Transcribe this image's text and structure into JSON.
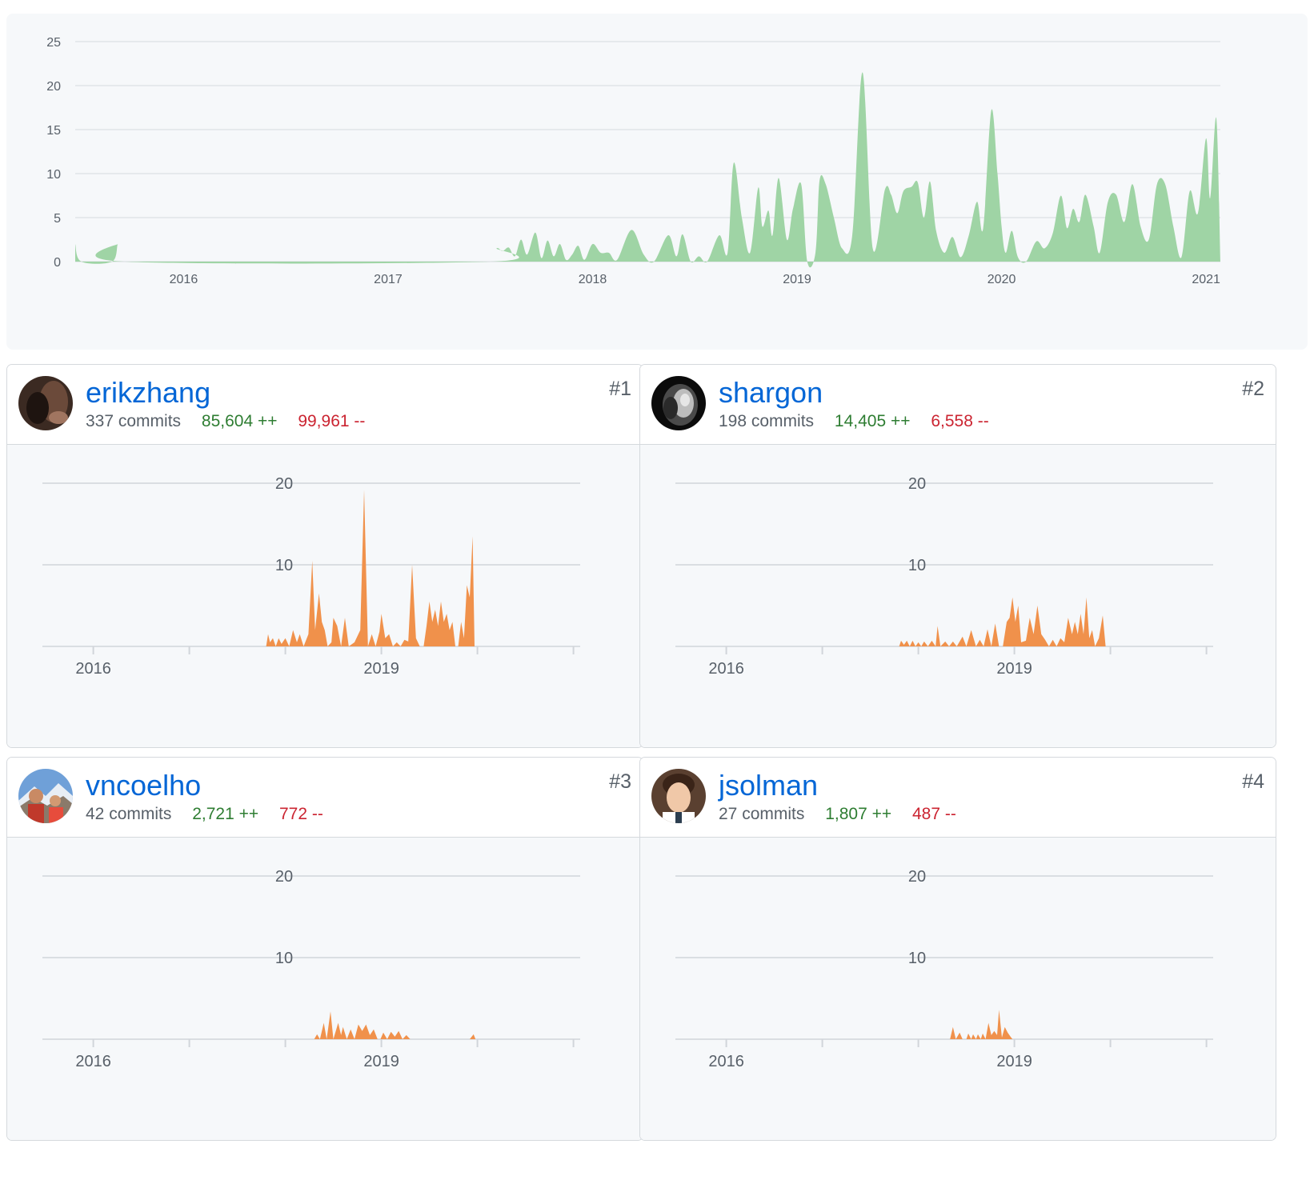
{
  "main_chart": {
    "type": "area",
    "color": "#9fd4a5",
    "y_ticks": [
      "0",
      "5",
      "10",
      "15",
      "20",
      "25"
    ],
    "ylim": [
      0,
      25
    ],
    "x_ticks": [
      "2016",
      "2017",
      "2018",
      "2019",
      "2020",
      "2021"
    ],
    "x_range": [
      2015.47,
      2021.07
    ],
    "series": [
      [
        2015.47,
        2
      ],
      [
        2015.5,
        0
      ],
      [
        2015.65,
        0
      ],
      [
        2015.68,
        2
      ],
      [
        2015.71,
        0
      ],
      [
        2017.5,
        0
      ],
      [
        2017.53,
        1.5
      ],
      [
        2017.56,
        1.2
      ],
      [
        2017.59,
        1.6
      ],
      [
        2017.62,
        0.6
      ],
      [
        2017.65,
        2.5
      ],
      [
        2017.68,
        0.8
      ],
      [
        2017.72,
        3.3
      ],
      [
        2017.75,
        0.4
      ],
      [
        2017.78,
        2.4
      ],
      [
        2017.81,
        0.6
      ],
      [
        2017.84,
        2
      ],
      [
        2017.87,
        0.2
      ],
      [
        2017.9,
        0.8
      ],
      [
        2017.93,
        1.8
      ],
      [
        2017.96,
        0.2
      ],
      [
        2018,
        2
      ],
      [
        2018.04,
        1
      ],
      [
        2018.08,
        1
      ],
      [
        2018.12,
        0.2
      ],
      [
        2018.19,
        3.6
      ],
      [
        2018.25,
        0.8
      ],
      [
        2018.3,
        0
      ],
      [
        2018.37,
        3
      ],
      [
        2018.41,
        0.6
      ],
      [
        2018.44,
        3.1
      ],
      [
        2018.48,
        0
      ],
      [
        2018.52,
        0.6
      ],
      [
        2018.56,
        0
      ],
      [
        2018.62,
        3
      ],
      [
        2018.66,
        1
      ],
      [
        2018.69,
        11.2
      ],
      [
        2018.73,
        5
      ],
      [
        2018.77,
        1
      ],
      [
        2018.81,
        8.4
      ],
      [
        2018.83,
        4
      ],
      [
        2018.86,
        5.8
      ],
      [
        2018.88,
        3
      ],
      [
        2018.91,
        9.5
      ],
      [
        2018.95,
        2.5
      ],
      [
        2018.98,
        6
      ],
      [
        2019.02,
        8.8
      ],
      [
        2019.05,
        0
      ],
      [
        2019.09,
        1
      ],
      [
        2019.11,
        9.2
      ],
      [
        2019.14,
        8.8
      ],
      [
        2019.18,
        5
      ],
      [
        2019.22,
        1.5
      ],
      [
        2019.27,
        3
      ],
      [
        2019.32,
        21.5
      ],
      [
        2019.37,
        1.5
      ],
      [
        2019.43,
        8.2
      ],
      [
        2019.46,
        7.6
      ],
      [
        2019.49,
        5.5
      ],
      [
        2019.52,
        8
      ],
      [
        2019.56,
        8.5
      ],
      [
        2019.59,
        9
      ],
      [
        2019.62,
        5
      ],
      [
        2019.65,
        9.1
      ],
      [
        2019.68,
        3.5
      ],
      [
        2019.72,
        1
      ],
      [
        2019.76,
        2.8
      ],
      [
        2019.8,
        0.5
      ],
      [
        2019.84,
        3
      ],
      [
        2019.88,
        6.8
      ],
      [
        2019.91,
        3.8
      ],
      [
        2019.95,
        17.2
      ],
      [
        2019.98,
        10
      ],
      [
        2020,
        4
      ],
      [
        2020.02,
        1
      ],
      [
        2020.05,
        3.5
      ],
      [
        2020.08,
        0.5
      ],
      [
        2020.12,
        0
      ],
      [
        2020.17,
        2.3
      ],
      [
        2020.21,
        1.5
      ],
      [
        2020.25,
        3.2
      ],
      [
        2020.29,
        7.5
      ],
      [
        2020.32,
        3.8
      ],
      [
        2020.35,
        6
      ],
      [
        2020.38,
        4.5
      ],
      [
        2020.41,
        7.6
      ],
      [
        2020.45,
        4
      ],
      [
        2020.48,
        1
      ],
      [
        2020.52,
        6.8
      ],
      [
        2020.56,
        7.6
      ],
      [
        2020.6,
        4.5
      ],
      [
        2020.64,
        8.8
      ],
      [
        2020.68,
        4
      ],
      [
        2020.72,
        2.5
      ],
      [
        2020.76,
        8.8
      ],
      [
        2020.8,
        8.8
      ],
      [
        2020.84,
        4
      ],
      [
        2020.88,
        0.5
      ],
      [
        2020.92,
        8
      ],
      [
        2020.96,
        5.5
      ],
      [
        2021,
        14
      ],
      [
        2021.02,
        7.2
      ],
      [
        2021.05,
        16.3
      ],
      [
        2021.07,
        0
      ]
    ]
  },
  "contributors": [
    {
      "rank": "#1",
      "username": "erikzhang",
      "commits": "337 commits",
      "additions": "85,604 ++",
      "deletions": "99,961 --",
      "avatar": "dark-portrait",
      "chart_data": {
        "type": "area",
        "color": "#f0914b",
        "y_ticks": [
          "10",
          "20"
        ],
        "ylim": [
          0,
          20
        ],
        "x_ticks": [
          "2016",
          "2019"
        ],
        "x_range": [
          2015.47,
          2021.07
        ],
        "series": [
          [
            2017.8,
            0
          ],
          [
            2017.82,
            1.5
          ],
          [
            2017.84,
            0.5
          ],
          [
            2017.87,
            1
          ],
          [
            2017.9,
            0
          ],
          [
            2017.93,
            1
          ],
          [
            2017.96,
            0.3
          ],
          [
            2018,
            1
          ],
          [
            2018.04,
            0
          ],
          [
            2018.08,
            2
          ],
          [
            2018.12,
            0.5
          ],
          [
            2018.15,
            1.5
          ],
          [
            2018.19,
            0
          ],
          [
            2018.24,
            1.5
          ],
          [
            2018.28,
            10.5
          ],
          [
            2018.31,
            2
          ],
          [
            2018.35,
            6.5
          ],
          [
            2018.38,
            3
          ],
          [
            2018.41,
            2
          ],
          [
            2018.44,
            0
          ],
          [
            2018.48,
            0.5
          ],
          [
            2018.5,
            3.5
          ],
          [
            2018.54,
            2.5
          ],
          [
            2018.58,
            0
          ],
          [
            2018.62,
            3.5
          ],
          [
            2018.66,
            0
          ],
          [
            2018.72,
            0.5
          ],
          [
            2018.78,
            2
          ],
          [
            2018.82,
            19.2
          ],
          [
            2018.86,
            0
          ],
          [
            2018.9,
            1.5
          ],
          [
            2018.94,
            0
          ],
          [
            2018.98,
            1.8
          ],
          [
            2019,
            4
          ],
          [
            2019.04,
            1
          ],
          [
            2019.08,
            1.5
          ],
          [
            2019.12,
            0
          ],
          [
            2019.16,
            0.5
          ],
          [
            2019.2,
            0
          ],
          [
            2019.24,
            0.8
          ],
          [
            2019.28,
            0.6
          ],
          [
            2019.32,
            10
          ],
          [
            2019.36,
            1
          ],
          [
            2019.4,
            0
          ],
          [
            2019.44,
            0
          ],
          [
            2019.47,
            2.5
          ],
          [
            2019.5,
            5.5
          ],
          [
            2019.53,
            3
          ],
          [
            2019.56,
            4.5
          ],
          [
            2019.59,
            2.5
          ],
          [
            2019.62,
            5.5
          ],
          [
            2019.65,
            3
          ],
          [
            2019.68,
            4
          ],
          [
            2019.71,
            2
          ],
          [
            2019.74,
            3
          ],
          [
            2019.77,
            0
          ],
          [
            2019.8,
            0
          ],
          [
            2019.83,
            3
          ],
          [
            2019.86,
            1
          ],
          [
            2019.89,
            7.5
          ],
          [
            2019.92,
            6
          ],
          [
            2019.95,
            13.5
          ],
          [
            2019.97,
            0
          ]
        ]
      }
    },
    {
      "rank": "#2",
      "username": "shargon",
      "commits": "198 commits",
      "additions": "14,405 ++",
      "deletions": "6,558 --",
      "avatar": "lion-portrait",
      "chart_data": {
        "type": "area",
        "color": "#f0914b",
        "y_ticks": [
          "10",
          "20"
        ],
        "ylim": [
          0,
          20
        ],
        "x_ticks": [
          "2016",
          "2019"
        ],
        "x_range": [
          2015.47,
          2021.07
        ],
        "series": [
          [
            2017.8,
            0
          ],
          [
            2017.82,
            0.7
          ],
          [
            2017.85,
            0.2
          ],
          [
            2017.88,
            0.7
          ],
          [
            2017.91,
            0
          ],
          [
            2017.94,
            0.7
          ],
          [
            2017.97,
            0
          ],
          [
            2018,
            0.5
          ],
          [
            2018.03,
            0
          ],
          [
            2018.06,
            0.6
          ],
          [
            2018.1,
            0
          ],
          [
            2018.14,
            0.7
          ],
          [
            2018.18,
            0
          ],
          [
            2018.2,
            2.5
          ],
          [
            2018.23,
            0
          ],
          [
            2018.28,
            0.6
          ],
          [
            2018.32,
            0
          ],
          [
            2018.36,
            0.6
          ],
          [
            2018.4,
            0
          ],
          [
            2018.46,
            1.2
          ],
          [
            2018.5,
            0
          ],
          [
            2018.55,
            2
          ],
          [
            2018.6,
            0
          ],
          [
            2018.64,
            0.8
          ],
          [
            2018.68,
            0
          ],
          [
            2018.72,
            2.1
          ],
          [
            2018.76,
            0
          ],
          [
            2018.8,
            2.8
          ],
          [
            2018.84,
            0
          ],
          [
            2018.88,
            0
          ],
          [
            2018.92,
            3
          ],
          [
            2018.95,
            3.5
          ],
          [
            2018.98,
            6
          ],
          [
            2019.01,
            3
          ],
          [
            2019.04,
            5
          ],
          [
            2019.07,
            0.5
          ],
          [
            2019.12,
            0.7
          ],
          [
            2019.16,
            3.5
          ],
          [
            2019.2,
            1.5
          ],
          [
            2019.24,
            5
          ],
          [
            2019.28,
            1.5
          ],
          [
            2019.32,
            0.8
          ],
          [
            2019.36,
            0
          ],
          [
            2019.4,
            0.8
          ],
          [
            2019.44,
            0
          ],
          [
            2019.48,
            1
          ],
          [
            2019.52,
            0.5
          ],
          [
            2019.56,
            3.5
          ],
          [
            2019.6,
            1.5
          ],
          [
            2019.63,
            3
          ],
          [
            2019.66,
            1.5
          ],
          [
            2019.69,
            4
          ],
          [
            2019.72,
            1.5
          ],
          [
            2019.75,
            6
          ],
          [
            2019.78,
            1
          ],
          [
            2019.81,
            2
          ],
          [
            2019.84,
            0
          ],
          [
            2019.88,
            1
          ],
          [
            2019.92,
            3.8
          ],
          [
            2019.95,
            0
          ]
        ]
      }
    },
    {
      "rank": "#3",
      "username": "vncoelho",
      "commits": "42 commits",
      "additions": "2,721 ++",
      "deletions": "772 --",
      "avatar": "mountain-photo",
      "chart_data": {
        "type": "area",
        "color": "#f0914b",
        "y_ticks": [
          "10",
          "20"
        ],
        "ylim": [
          0,
          20
        ],
        "x_ticks": [
          "2016",
          "2019"
        ],
        "x_range": [
          2015.47,
          2021.07
        ],
        "series": [
          [
            2018.3,
            0
          ],
          [
            2018.33,
            0.6
          ],
          [
            2018.36,
            0
          ],
          [
            2018.4,
            2
          ],
          [
            2018.43,
            0
          ],
          [
            2018.47,
            3.4
          ],
          [
            2018.5,
            0
          ],
          [
            2018.55,
            2
          ],
          [
            2018.58,
            0.5
          ],
          [
            2018.6,
            1.5
          ],
          [
            2018.64,
            0
          ],
          [
            2018.68,
            1.2
          ],
          [
            2018.72,
            0
          ],
          [
            2018.76,
            1.8
          ],
          [
            2018.8,
            1
          ],
          [
            2018.84,
            1.8
          ],
          [
            2018.88,
            0.5
          ],
          [
            2018.92,
            1.2
          ],
          [
            2018.96,
            0
          ],
          [
            2018.99,
            0
          ],
          [
            2019.02,
            0.8
          ],
          [
            2019.06,
            0
          ],
          [
            2019.1,
            0.9
          ],
          [
            2019.14,
            0.3
          ],
          [
            2019.18,
            1
          ],
          [
            2019.22,
            0
          ],
          [
            2019.26,
            0.5
          ],
          [
            2019.3,
            0
          ],
          [
            2019.92,
            0
          ],
          [
            2019.96,
            0.6
          ],
          [
            2019.98,
            0
          ]
        ]
      }
    },
    {
      "rank": "#4",
      "username": "jsolman",
      "commits": "27 commits",
      "additions": "1,807 ++",
      "deletions": "487 --",
      "avatar": "young-man-portrait",
      "chart_data": {
        "type": "area",
        "color": "#f0914b",
        "y_ticks": [
          "10",
          "20"
        ],
        "ylim": [
          0,
          20
        ],
        "x_ticks": [
          "2016",
          "2019"
        ],
        "x_range": [
          2015.47,
          2021.07
        ],
        "series": [
          [
            2018.33,
            0
          ],
          [
            2018.36,
            1.5
          ],
          [
            2018.39,
            0
          ],
          [
            2018.43,
            0.8
          ],
          [
            2018.46,
            0
          ],
          [
            2018.5,
            0
          ],
          [
            2018.52,
            0.7
          ],
          [
            2018.55,
            0
          ],
          [
            2018.57,
            0.6
          ],
          [
            2018.6,
            0
          ],
          [
            2018.62,
            0.6
          ],
          [
            2018.65,
            0
          ],
          [
            2018.67,
            0.7
          ],
          [
            2018.7,
            0
          ],
          [
            2018.73,
            2
          ],
          [
            2018.76,
            0.5
          ],
          [
            2018.79,
            1
          ],
          [
            2018.82,
            0.5
          ],
          [
            2018.84,
            3.6
          ],
          [
            2018.87,
            0.2
          ],
          [
            2018.9,
            1.5
          ],
          [
            2018.93,
            0.8
          ],
          [
            2018.96,
            0.3
          ],
          [
            2018.98,
            0
          ]
        ]
      }
    }
  ]
}
